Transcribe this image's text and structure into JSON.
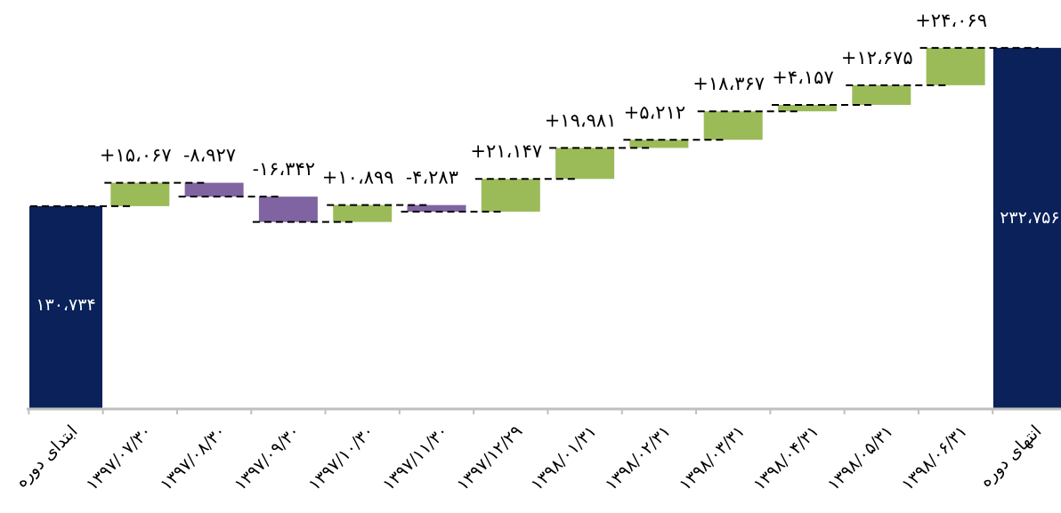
{
  "chart_data": {
    "type": "waterfall",
    "title": "",
    "xlabel": "",
    "ylabel": "",
    "ylim": [
      0,
      260000
    ],
    "grid": false,
    "legend": "none",
    "colors": {
      "total": "#0a215a",
      "increase": "#9bbb59",
      "decrease": "#8064a2",
      "axis": "#bfbfbf",
      "connector": "#000000"
    },
    "start": {
      "category": "ابتدای دوره",
      "value": 130734,
      "label": "۱۳۰،۷۳۴"
    },
    "end": {
      "category": "انتهای دوره",
      "value": 232756,
      "label": "۲۳۲،۷۵۶"
    },
    "steps": [
      {
        "category": "۱۳۹۷/۰۷/۳۰",
        "value": 15067,
        "label": "+۱۵،۰۶۷"
      },
      {
        "category": "۱۳۹۷/۰۸/۳۰",
        "value": -8927,
        "label": "-۸،۹۲۷"
      },
      {
        "category": "۱۳۹۷/۰۹/۳۰",
        "value": -16342,
        "label": "-۱۶،۳۴۲"
      },
      {
        "category": "۱۳۹۷/۱۰/۳۰",
        "value": 10899,
        "label": "+۱۰،۸۹۹"
      },
      {
        "category": "۱۳۹۷/۱۱/۳۰",
        "value": -4283,
        "label": "-۴،۲۸۳"
      },
      {
        "category": "۱۳۹۷/۱۲/۲۹",
        "value": 21147,
        "label": "+۲۱،۱۴۷"
      },
      {
        "category": "۱۳۹۸/۰۱/۳۱",
        "value": 19981,
        "label": "+۱۹،۹۸۱"
      },
      {
        "category": "۱۳۹۸/۰۲/۳۱",
        "value": 5212,
        "label": "+۵،۲۱۲"
      },
      {
        "category": "۱۳۹۸/۰۳/۳۱",
        "value": 18367,
        "label": "+۱۸،۳۶۷"
      },
      {
        "category": "۱۳۹۸/۰۴/۳۱",
        "value": 4157,
        "label": "+۴،۱۵۷"
      },
      {
        "category": "۱۳۹۸/۰۵/۳۱",
        "value": 12675,
        "label": "+۱۲،۶۷۵"
      },
      {
        "category": "۱۳۹۸/۰۶/۳۱",
        "value": 24069,
        "label": "+۲۴،۰۶۹"
      }
    ]
  }
}
